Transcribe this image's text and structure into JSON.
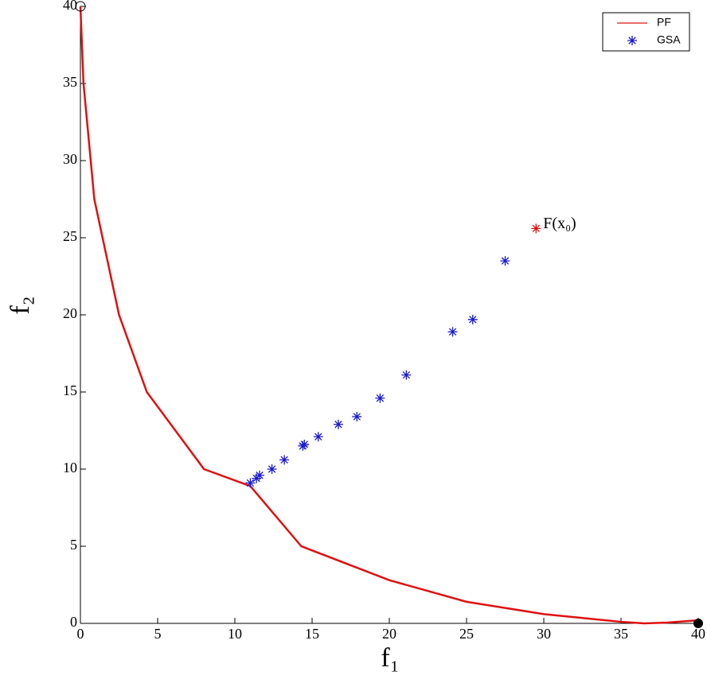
{
  "chart_data": {
    "type": "line",
    "xlabel": "f₁",
    "ylabel": "f₂",
    "xlim": [
      0,
      40
    ],
    "ylim": [
      0,
      40
    ],
    "xticks": [
      0,
      5,
      10,
      15,
      20,
      25,
      30,
      35,
      40
    ],
    "yticks": [
      0,
      5,
      10,
      15,
      20,
      25,
      30,
      35,
      40
    ],
    "legend": "upper right",
    "series": [
      {
        "name": "PF",
        "type": "line",
        "color": "#e01010",
        "x": [
          0,
          0.2,
          0.9,
          2.5,
          4.3,
          8,
          11,
          14.3,
          20,
          25,
          30,
          35,
          36.5,
          38,
          40
        ],
        "values": [
          40,
          35,
          27.5,
          20,
          15,
          10,
          8.9,
          5,
          2.8,
          1.4,
          0.6,
          0.1,
          0,
          0.05,
          0.2
        ]
      },
      {
        "name": "GSA",
        "type": "scatter",
        "color": "#1a1ad0",
        "x": [
          11.0,
          11.4,
          11.6,
          12.4,
          13.2,
          14.4,
          14.5,
          15.4,
          16.7,
          17.9,
          19.4,
          21.1,
          24.1,
          25.4,
          27.5
        ],
        "values": [
          9.1,
          9.4,
          9.6,
          10.0,
          10.6,
          11.5,
          11.6,
          12.1,
          12.9,
          13.4,
          14.6,
          16.1,
          18.9,
          19.7,
          23.5
        ]
      }
    ],
    "annotation": {
      "text": "F(x₀)",
      "x": 29.5,
      "y": 25.6,
      "color": "#e01010"
    },
    "extreme_points": {
      "x": [
        0,
        40
      ],
      "values": [
        40,
        0
      ]
    }
  }
}
